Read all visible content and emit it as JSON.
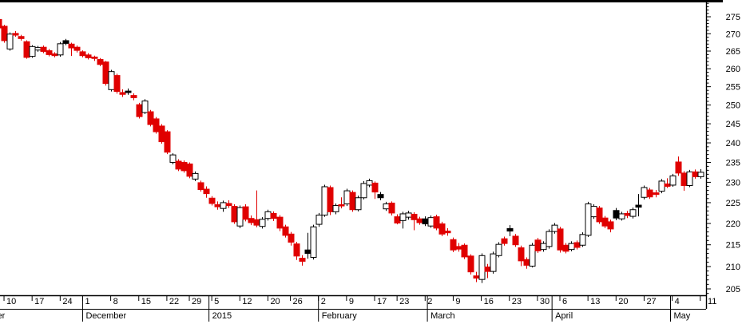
{
  "window": {
    "background": "#ffffff",
    "top_border_color": "#000000"
  },
  "chart_data": {
    "type": "candlestick",
    "title": "",
    "timeframe": "daily",
    "legend": "none",
    "grid": "off",
    "colors": {
      "up_body": "#ffffff",
      "down_body": "#e00000",
      "neutral_body": "#000000",
      "outline": "#000000",
      "axis": "#000000",
      "label_text": "#000000"
    },
    "y_axis": {
      "side": "right",
      "scale": "log",
      "tick_labels": [
        275,
        270,
        265,
        260,
        255,
        250,
        245,
        240,
        235,
        230,
        225,
        220,
        215,
        210,
        205
      ],
      "major_tick_step": 5,
      "minor_tick_step": 1,
      "visible_range": [
        203.7,
        279.6
      ]
    },
    "x_axis": {
      "day_ticks": [
        {
          "label": "10",
          "i": 1
        },
        {
          "label": "17",
          "i": 6
        },
        {
          "label": "24",
          "i": 11
        },
        {
          "label": "1",
          "i": 15
        },
        {
          "label": "8",
          "i": 20
        },
        {
          "label": "15",
          "i": 25
        },
        {
          "label": "22",
          "i": 30
        },
        {
          "label": "29",
          "i": 34
        },
        {
          "label": "5",
          "i": 38
        },
        {
          "label": "12",
          "i": 43
        },
        {
          "label": "20",
          "i": 48
        },
        {
          "label": "26",
          "i": 52
        },
        {
          "label": "2",
          "i": 57
        },
        {
          "label": "9",
          "i": 62
        },
        {
          "label": "17",
          "i": 67
        },
        {
          "label": "23",
          "i": 71
        },
        {
          "label": "2",
          "i": 76
        },
        {
          "label": "9",
          "i": 81
        },
        {
          "label": "16",
          "i": 86
        },
        {
          "label": "23",
          "i": 91
        },
        {
          "label": "30",
          "i": 96
        },
        {
          "label": "6",
          "i": 100
        },
        {
          "label": "13",
          "i": 105
        },
        {
          "label": "20",
          "i": 110
        },
        {
          "label": "27",
          "i": 115
        },
        {
          "label": "4",
          "i": 120
        },
        {
          "label": "11",
          "i": 125,
          "outside": true
        }
      ],
      "month_labels": [
        {
          "label": "November",
          "i": -6.6
        },
        {
          "label": "December",
          "i": 15
        },
        {
          "label": "2015",
          "i": 37.5
        },
        {
          "label": "February",
          "i": 57
        },
        {
          "label": "March",
          "i": 76.4
        },
        {
          "label": "April",
          "i": 98.6
        },
        {
          "label": "May",
          "i": 119.7
        }
      ]
    },
    "candle_fields": [
      "date",
      "open",
      "high",
      "low",
      "close",
      "kind(u=up-hollow,d=down-red,b=black)"
    ],
    "candles": [
      [
        "2014-11-07",
        274.2,
        274.8,
        271.2,
        271.7,
        "d"
      ],
      [
        "2014-11-10",
        272.2,
        272.6,
        267.4,
        268.0,
        "d"
      ],
      [
        "2014-11-11",
        265.6,
        270.4,
        265.1,
        269.9,
        "u"
      ],
      [
        "2014-11-12",
        270.1,
        270.8,
        269.1,
        269.6,
        "d"
      ],
      [
        "2014-11-13",
        269.2,
        269.7,
        268.0,
        268.6,
        "d"
      ],
      [
        "2014-11-14",
        267.7,
        268.1,
        262.8,
        263.2,
        "d"
      ],
      [
        "2014-11-17",
        263.5,
        266.7,
        263.1,
        266.3,
        "u"
      ],
      [
        "2014-11-18",
        265.3,
        266.5,
        264.8,
        266.0,
        "u"
      ],
      [
        "2014-11-19",
        266.1,
        266.6,
        264.4,
        264.9,
        "d"
      ],
      [
        "2014-11-20",
        265.1,
        265.6,
        263.5,
        264.0,
        "d"
      ],
      [
        "2014-11-21",
        264.2,
        264.7,
        263.2,
        263.7,
        "d"
      ],
      [
        "2014-11-24",
        263.9,
        267.6,
        263.4,
        267.1,
        "u"
      ],
      [
        "2014-11-25",
        268.0,
        268.5,
        266.7,
        267.2,
        "b"
      ],
      [
        "2014-11-26",
        267.0,
        267.4,
        263.6,
        265.9,
        "d"
      ],
      [
        "2014-11-28",
        266.1,
        266.6,
        264.6,
        265.2,
        "d"
      ],
      [
        "2014-12-01",
        264.8,
        265.2,
        263.2,
        263.7,
        "d"
      ],
      [
        "2014-12-02",
        263.9,
        264.4,
        262.6,
        263.1,
        "d"
      ],
      [
        "2014-12-03",
        263.3,
        263.7,
        262.2,
        262.9,
        "d"
      ],
      [
        "2014-12-04",
        262.6,
        263.0,
        260.7,
        261.2,
        "d"
      ],
      [
        "2014-12-05",
        261.9,
        262.2,
        255.3,
        255.9,
        "d"
      ],
      [
        "2014-12-08",
        254.2,
        259.7,
        253.7,
        259.2,
        "u"
      ],
      [
        "2014-12-09",
        258.1,
        258.6,
        253.1,
        253.7,
        "d"
      ],
      [
        "2014-12-10",
        253.4,
        254.3,
        252.2,
        252.9,
        "d"
      ],
      [
        "2014-12-11",
        253.8,
        254.5,
        252.8,
        253.4,
        "b"
      ],
      [
        "2014-12-12",
        252.6,
        253.2,
        251.3,
        252.0,
        "d"
      ],
      [
        "2014-12-15",
        250.1,
        250.6,
        246.4,
        246.9,
        "d"
      ],
      [
        "2014-12-16",
        248.0,
        251.6,
        247.6,
        251.1,
        "u"
      ],
      [
        "2014-12-17",
        248.2,
        248.7,
        244.3,
        244.8,
        "d"
      ],
      [
        "2014-12-18",
        246.3,
        246.8,
        242.4,
        242.9,
        "d"
      ],
      [
        "2014-12-19",
        244.4,
        244.9,
        239.8,
        240.3,
        "d"
      ],
      [
        "2014-12-22",
        242.9,
        243.3,
        237.1,
        237.6,
        "d"
      ],
      [
        "2014-12-23",
        235.0,
        237.3,
        234.5,
        236.9,
        "u"
      ],
      [
        "2014-12-24",
        235.3,
        235.8,
        232.8,
        233.3,
        "d"
      ],
      [
        "2014-12-26",
        235.0,
        235.5,
        232.4,
        232.9,
        "d"
      ],
      [
        "2014-12-29",
        234.6,
        235.0,
        231.0,
        231.5,
        "d"
      ],
      [
        "2014-12-30",
        230.8,
        232.7,
        230.3,
        232.2,
        "u"
      ],
      [
        "2014-12-31",
        229.9,
        230.4,
        227.7,
        228.2,
        "d"
      ],
      [
        "2015-01-02",
        228.3,
        229.0,
        226.2,
        227.2,
        "d"
      ],
      [
        "2015-01-05",
        226.1,
        226.6,
        224.3,
        224.8,
        "d"
      ],
      [
        "2015-01-06",
        224.5,
        225.3,
        223.3,
        224.0,
        "d"
      ],
      [
        "2015-01-07",
        223.6,
        225.5,
        222.8,
        225.0,
        "u"
      ],
      [
        "2015-01-08",
        224.8,
        225.6,
        223.7,
        224.3,
        "d"
      ],
      [
        "2015-01-09",
        224.1,
        224.6,
        219.9,
        220.4,
        "d"
      ],
      [
        "2015-01-12",
        219.4,
        224.3,
        218.9,
        223.8,
        "u"
      ],
      [
        "2015-01-13",
        224.0,
        224.6,
        220.5,
        221.0,
        "d"
      ],
      [
        "2015-01-14",
        221.2,
        221.9,
        219.6,
        220.2,
        "d"
      ],
      [
        "2015-01-15",
        220.9,
        228.0,
        219.1,
        219.6,
        "d"
      ],
      [
        "2015-01-16",
        219.3,
        221.5,
        218.8,
        221.0,
        "u"
      ],
      [
        "2015-01-20",
        221.2,
        223.3,
        220.7,
        222.8,
        "u"
      ],
      [
        "2015-01-21",
        222.4,
        222.9,
        220.6,
        221.2,
        "d"
      ],
      [
        "2015-01-22",
        221.5,
        222.0,
        218.2,
        218.9,
        "d"
      ],
      [
        "2015-01-23",
        219.2,
        219.7,
        216.7,
        217.2,
        "d"
      ],
      [
        "2015-01-26",
        217.5,
        218.0,
        214.8,
        215.6,
        "d"
      ],
      [
        "2015-01-27",
        215.2,
        215.7,
        211.5,
        212.4,
        "d"
      ],
      [
        "2015-01-28",
        211.9,
        212.6,
        210.2,
        211.2,
        "d"
      ],
      [
        "2015-01-29",
        213.0,
        217.8,
        211.8,
        213.8,
        "b"
      ],
      [
        "2015-01-30",
        212.1,
        219.7,
        211.6,
        219.2,
        "u"
      ],
      [
        "2015-02-02",
        219.8,
        222.5,
        219.2,
        222.0,
        "u"
      ],
      [
        "2015-02-03",
        222.0,
        229.4,
        221.6,
        228.9,
        "u"
      ],
      [
        "2015-02-04",
        228.7,
        229.2,
        222.0,
        222.8,
        "d"
      ],
      [
        "2015-02-05",
        222.8,
        224.8,
        222.2,
        224.3,
        "u"
      ],
      [
        "2015-02-06",
        224.5,
        226.3,
        223.6,
        224.2,
        "d"
      ],
      [
        "2015-02-09",
        224.7,
        228.4,
        224.2,
        227.9,
        "u"
      ],
      [
        "2015-02-10",
        227.5,
        228.0,
        222.8,
        223.3,
        "d"
      ],
      [
        "2015-02-11",
        223.3,
        226.7,
        222.9,
        226.2,
        "u"
      ],
      [
        "2015-02-12",
        226.2,
        230.3,
        225.8,
        229.7,
        "u"
      ],
      [
        "2015-02-13",
        229.3,
        230.9,
        228.8,
        230.4,
        "u"
      ],
      [
        "2015-02-17",
        229.8,
        230.2,
        225.9,
        227.6,
        "d"
      ],
      [
        "2015-02-18",
        227.0,
        227.6,
        225.6,
        226.2,
        "b"
      ],
      [
        "2015-02-19",
        223.5,
        225.2,
        223.0,
        224.7,
        "u"
      ],
      [
        "2015-02-20",
        224.9,
        225.3,
        221.9,
        222.5,
        "d"
      ],
      [
        "2015-02-23",
        221.6,
        222.2,
        219.8,
        220.1,
        "d"
      ],
      [
        "2015-02-24",
        220.7,
        222.8,
        218.8,
        222.3,
        "u"
      ],
      [
        "2015-02-25",
        221.5,
        223.0,
        220.9,
        222.5,
        "u"
      ],
      [
        "2015-02-26",
        222.2,
        222.7,
        218.4,
        220.9,
        "d"
      ],
      [
        "2015-02-27",
        221.1,
        221.6,
        219.7,
        220.2,
        "d"
      ],
      [
        "2015-03-02",
        221.1,
        221.7,
        219.4,
        219.9,
        "b"
      ],
      [
        "2015-03-03",
        219.4,
        221.9,
        219.0,
        221.4,
        "u"
      ],
      [
        "2015-03-04",
        221.6,
        222.1,
        218.4,
        218.9,
        "d"
      ],
      [
        "2015-03-05",
        219.9,
        220.4,
        217.0,
        217.5,
        "d"
      ],
      [
        "2015-03-06",
        218.2,
        218.9,
        217.1,
        217.8,
        "d"
      ],
      [
        "2015-03-09",
        216.2,
        216.7,
        213.3,
        213.8,
        "d"
      ],
      [
        "2015-03-10",
        214.6,
        215.4,
        213.4,
        214.0,
        "d"
      ],
      [
        "2015-03-11",
        214.9,
        215.3,
        211.7,
        212.2,
        "d"
      ],
      [
        "2015-03-12",
        212.4,
        212.8,
        208.2,
        208.8,
        "d"
      ],
      [
        "2015-03-13",
        207.9,
        208.8,
        206.5,
        207.4,
        "d"
      ],
      [
        "2015-03-16",
        207.1,
        213.0,
        206.3,
        212.5,
        "u"
      ],
      [
        "2015-03-17",
        209.9,
        210.6,
        207.4,
        208.9,
        "d"
      ],
      [
        "2015-03-18",
        208.9,
        213.4,
        208.4,
        212.9,
        "u"
      ],
      [
        "2015-03-19",
        212.5,
        215.6,
        212.1,
        215.1,
        "u"
      ],
      [
        "2015-03-20",
        216.4,
        216.9,
        214.8,
        215.3,
        "d"
      ],
      [
        "2015-03-23",
        218.8,
        219.6,
        217.0,
        218.2,
        "b"
      ],
      [
        "2015-03-24",
        217.0,
        217.5,
        214.5,
        215.0,
        "d"
      ],
      [
        "2015-03-25",
        214.3,
        214.8,
        210.1,
        211.3,
        "d"
      ],
      [
        "2015-03-26",
        211.6,
        212.1,
        209.5,
        210.3,
        "d"
      ],
      [
        "2015-03-27",
        210.1,
        215.4,
        209.8,
        214.9,
        "u"
      ],
      [
        "2015-03-30",
        216.1,
        216.6,
        213.1,
        213.6,
        "d"
      ],
      [
        "2015-03-31",
        213.9,
        215.8,
        213.4,
        215.3,
        "u"
      ],
      [
        "2015-04-01",
        214.6,
        218.6,
        214.1,
        218.1,
        "u"
      ],
      [
        "2015-04-02",
        218.1,
        220.1,
        217.6,
        219.6,
        "u"
      ],
      [
        "2015-04-06",
        218.7,
        219.2,
        213.2,
        213.8,
        "d"
      ],
      [
        "2015-04-07",
        214.9,
        215.4,
        213.0,
        213.5,
        "d"
      ],
      [
        "2015-04-08",
        213.9,
        215.8,
        213.5,
        215.3,
        "u"
      ],
      [
        "2015-04-09",
        215.5,
        216.0,
        213.9,
        214.4,
        "d"
      ],
      [
        "2015-04-10",
        214.9,
        217.9,
        214.5,
        217.4,
        "u"
      ],
      [
        "2015-04-13",
        217.2,
        225.2,
        216.8,
        224.7,
        "u"
      ],
      [
        "2015-04-14",
        221.6,
        224.6,
        221.1,
        224.1,
        "u"
      ],
      [
        "2015-04-15",
        223.7,
        224.2,
        219.9,
        220.4,
        "d"
      ],
      [
        "2015-04-16",
        221.3,
        221.8,
        218.9,
        219.4,
        "d"
      ],
      [
        "2015-04-17",
        220.4,
        220.9,
        217.9,
        218.7,
        "d"
      ],
      [
        "2015-04-20",
        223.1,
        223.7,
        220.8,
        221.3,
        "b"
      ],
      [
        "2015-04-21",
        221.1,
        222.8,
        220.7,
        222.3,
        "u"
      ],
      [
        "2015-04-22",
        222.4,
        223.0,
        221.3,
        221.9,
        "d"
      ],
      [
        "2015-04-23",
        221.7,
        223.8,
        221.2,
        223.3,
        "u"
      ],
      [
        "2015-04-24",
        224.4,
        227.1,
        221.7,
        223.9,
        "b"
      ],
      [
        "2015-04-27",
        226.3,
        229.2,
        225.8,
        228.7,
        "u"
      ],
      [
        "2015-04-28",
        228.1,
        228.6,
        225.9,
        226.4,
        "d"
      ],
      [
        "2015-04-29",
        227.4,
        228.1,
        226.3,
        227.0,
        "d"
      ],
      [
        "2015-04-30",
        227.8,
        230.8,
        227.3,
        230.3,
        "u"
      ],
      [
        "2015-05-01",
        229.6,
        231.0,
        228.6,
        229.0,
        "d"
      ],
      [
        "2015-05-04",
        229.3,
        232.1,
        228.9,
        231.6,
        "u"
      ],
      [
        "2015-05-05",
        235.1,
        236.5,
        231.6,
        232.3,
        "d"
      ],
      [
        "2015-05-06",
        232.3,
        232.8,
        227.9,
        229.2,
        "d"
      ],
      [
        "2015-05-07",
        229.2,
        233.1,
        228.8,
        232.6,
        "u"
      ],
      [
        "2015-05-08",
        232.6,
        233.2,
        230.9,
        231.4,
        "d"
      ],
      [
        "2015-05-11",
        231.4,
        233.3,
        230.9,
        232.5,
        "u"
      ]
    ]
  }
}
